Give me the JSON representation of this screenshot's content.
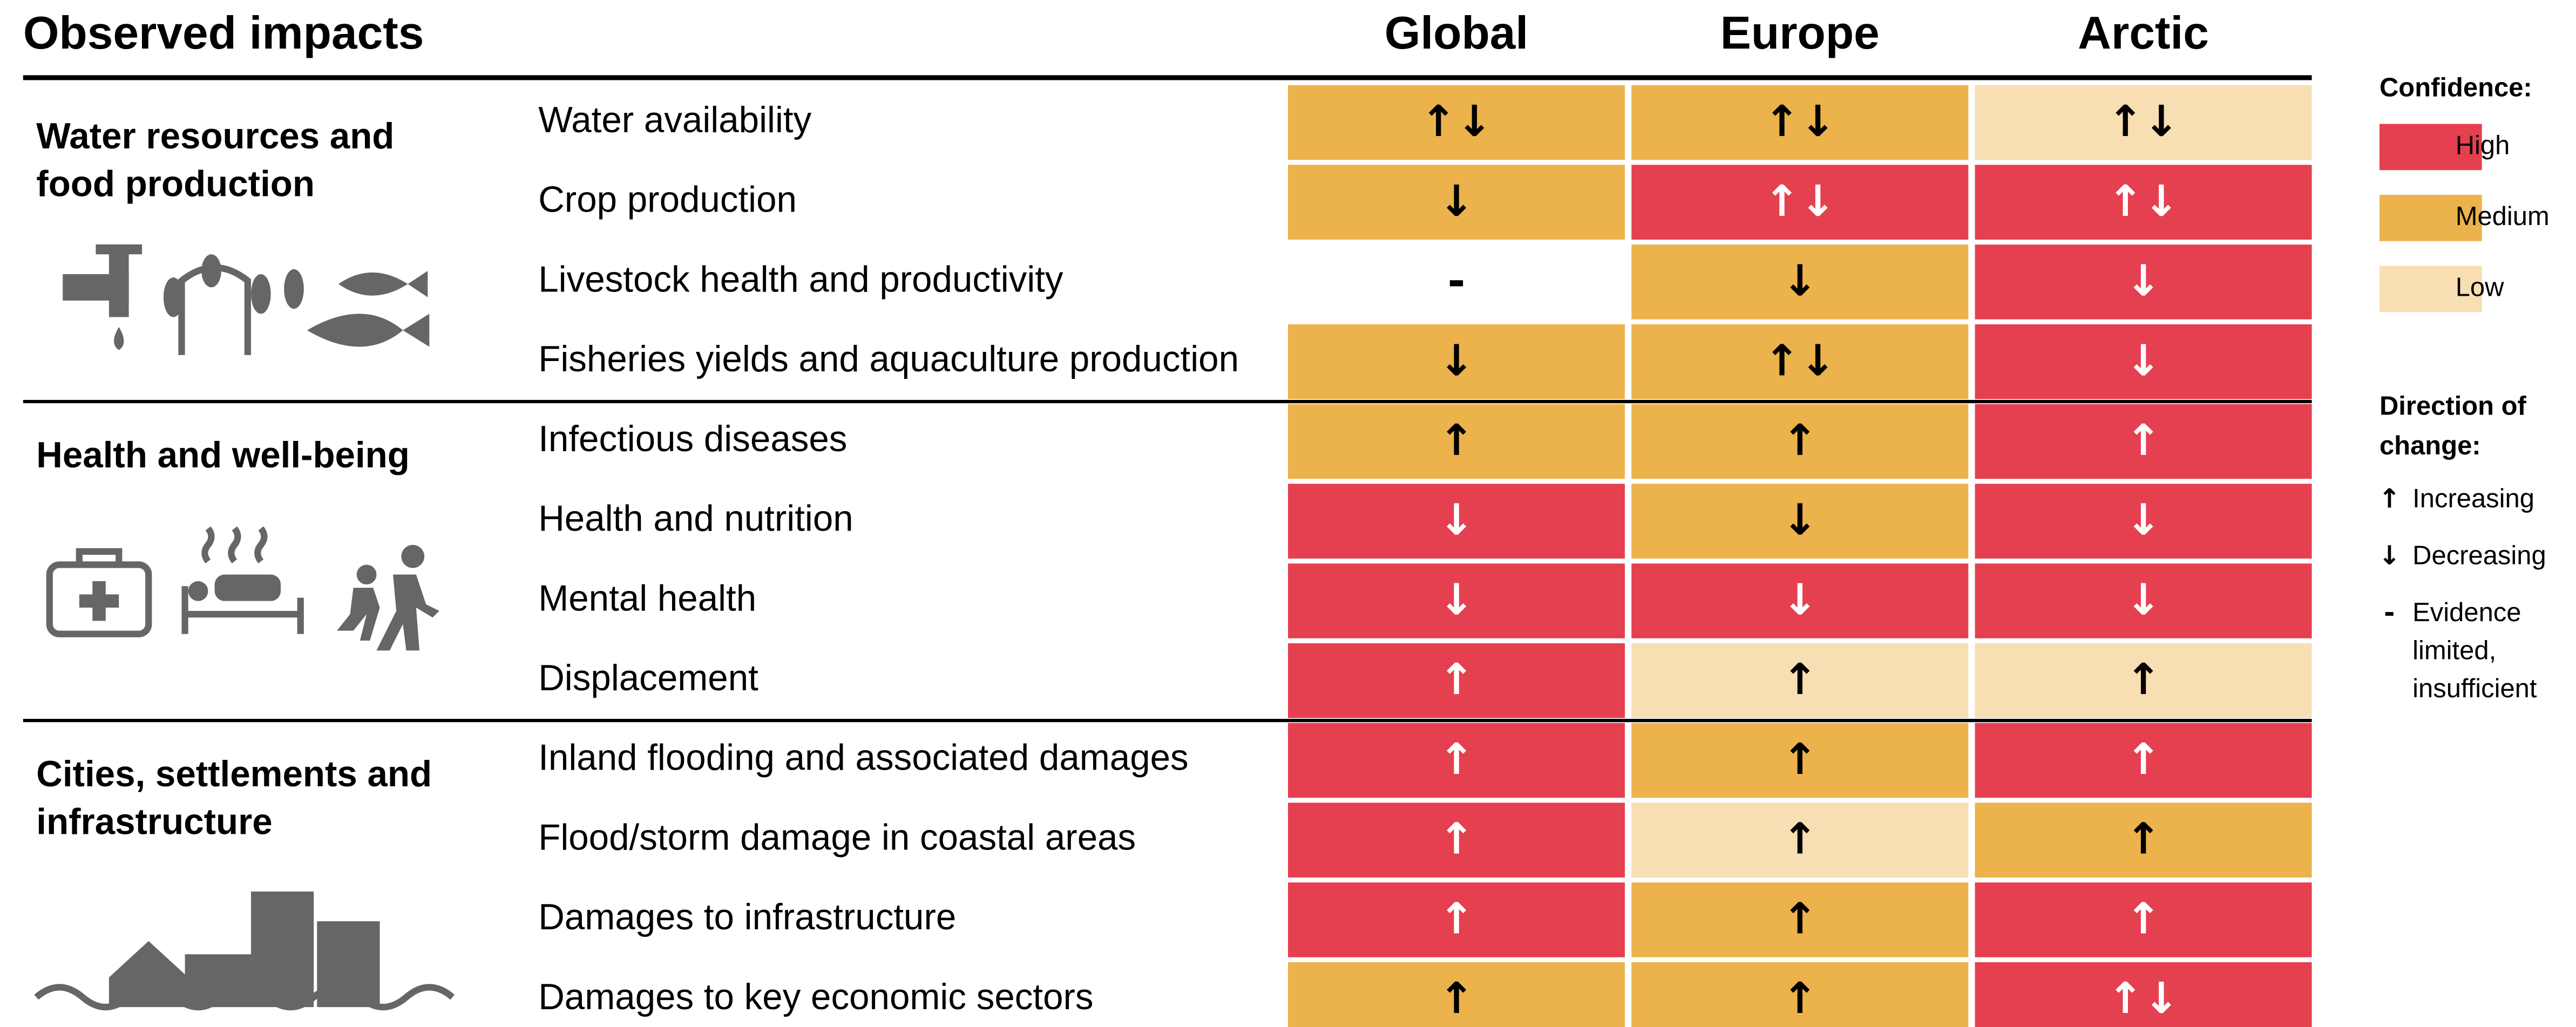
{
  "header": {
    "title": "Observed impacts",
    "columns": [
      "Global",
      "Europe",
      "Arctic"
    ]
  },
  "groups": [
    {
      "title_lines": [
        "Water resources and",
        "food production"
      ],
      "rows": [
        {
          "label": "Water availability",
          "cells": [
            {
              "confidence": "Medium",
              "direction": "↑↓"
            },
            {
              "confidence": "Medium",
              "direction": "↑↓"
            },
            {
              "confidence": "Low",
              "direction": "↑↓"
            }
          ]
        },
        {
          "label": "Crop production",
          "cells": [
            {
              "confidence": "Medium",
              "direction": "↓"
            },
            {
              "confidence": "High",
              "direction": "↑↓"
            },
            {
              "confidence": "High",
              "direction": "↑↓"
            }
          ]
        },
        {
          "label": "Livestock health and productivity",
          "cells": [
            {
              "confidence": null,
              "direction": "-"
            },
            {
              "confidence": "Medium",
              "direction": "↓"
            },
            {
              "confidence": "High",
              "direction": "↓"
            }
          ]
        },
        {
          "label": "Fisheries yields and aquaculture production",
          "cells": [
            {
              "confidence": "Medium",
              "direction": "↓"
            },
            {
              "confidence": "Medium",
              "direction": "↑↓"
            },
            {
              "confidence": "High",
              "direction": "↓"
            }
          ]
        }
      ]
    },
    {
      "title_lines": [
        "Health and well-being"
      ],
      "rows": [
        {
          "label": "Infectious diseases",
          "cells": [
            {
              "confidence": "Medium",
              "direction": "↑"
            },
            {
              "confidence": "Medium",
              "direction": "↑"
            },
            {
              "confidence": "High",
              "direction": "↑"
            }
          ]
        },
        {
          "label": "Health and nutrition",
          "cells": [
            {
              "confidence": "High",
              "direction": "↓"
            },
            {
              "confidence": "Medium",
              "direction": "↓"
            },
            {
              "confidence": "High",
              "direction": "↓"
            }
          ]
        },
        {
          "label": "Mental health",
          "cells": [
            {
              "confidence": "High",
              "direction": "↓"
            },
            {
              "confidence": "High",
              "direction": "↓"
            },
            {
              "confidence": "High",
              "direction": "↓"
            }
          ]
        },
        {
          "label": "Displacement",
          "cells": [
            {
              "confidence": "High",
              "direction": "↑"
            },
            {
              "confidence": "Low",
              "direction": "↑"
            },
            {
              "confidence": "Low",
              "direction": "↑"
            }
          ]
        }
      ]
    },
    {
      "title_lines": [
        "Cities, settlements and",
        "infrastructure"
      ],
      "rows": [
        {
          "label": "Inland flooding and associated damages",
          "cells": [
            {
              "confidence": "High",
              "direction": "↑"
            },
            {
              "confidence": "Medium",
              "direction": "↑"
            },
            {
              "confidence": "High",
              "direction": "↑"
            }
          ]
        },
        {
          "label": "Flood/storm damage in coastal areas",
          "cells": [
            {
              "confidence": "High",
              "direction": "↑"
            },
            {
              "confidence": "Low",
              "direction": "↑"
            },
            {
              "confidence": "Medium",
              "direction": "↑"
            }
          ]
        },
        {
          "label": "Damages to infrastructure",
          "cells": [
            {
              "confidence": "High",
              "direction": "↑"
            },
            {
              "confidence": "Medium",
              "direction": "↑"
            },
            {
              "confidence": "High",
              "direction": "↑"
            }
          ]
        },
        {
          "label": "Damages to key economic sectors",
          "cells": [
            {
              "confidence": "Medium",
              "direction": "↑"
            },
            {
              "confidence": "Medium",
              "direction": "↑"
            },
            {
              "confidence": "High",
              "direction": "↑↓"
            }
          ]
        }
      ]
    }
  ],
  "legend": {
    "confidence_title": "Confidence:",
    "confidence": [
      {
        "label": "High",
        "color": "#e5404f",
        "arrow_color": "#ffffff"
      },
      {
        "label": "Medium",
        "color": "#ecb24b",
        "arrow_color": "#000000"
      },
      {
        "label": "Low",
        "color": "#f7deb3",
        "arrow_color": "#000000"
      }
    ],
    "direction_title_lines": [
      "Direction of",
      "change:"
    ],
    "direction": [
      {
        "symbol": "↑",
        "label": "Increasing"
      },
      {
        "symbol": "↓",
        "label": "Decreasing"
      },
      {
        "symbol": "-",
        "label": "Evidence limited, insufficient"
      }
    ]
  }
}
